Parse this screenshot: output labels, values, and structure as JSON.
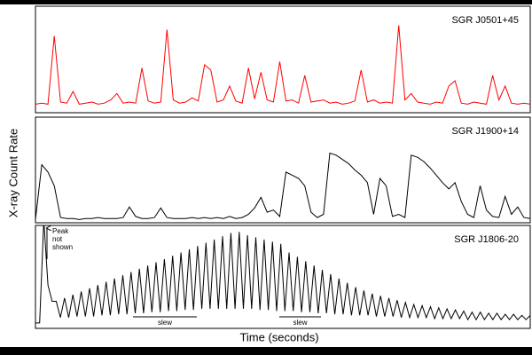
{
  "axis_labels": {
    "y": "X-ray Count Rate",
    "x": "Time (seconds)"
  },
  "chart_data": [
    {
      "type": "line",
      "label": "SGR J0501+45",
      "color": "#ff0000",
      "xlim": [
        0,
        79
      ],
      "ylim": [
        0,
        100
      ],
      "x": [
        0,
        1,
        2,
        3,
        4,
        5,
        6,
        7,
        8,
        9,
        10,
        11,
        12,
        13,
        14,
        15,
        16,
        17,
        18,
        19,
        20,
        21,
        22,
        23,
        24,
        25,
        26,
        27,
        28,
        29,
        30,
        31,
        32,
        33,
        34,
        35,
        36,
        37,
        38,
        39,
        40,
        41,
        42,
        43,
        44,
        45,
        46,
        47,
        48,
        49,
        50,
        51,
        52,
        53,
        54,
        55,
        56,
        57,
        58,
        59,
        60,
        61,
        62,
        63,
        64,
        65,
        66,
        67,
        68,
        69,
        70,
        71,
        72,
        73,
        74,
        75,
        76,
        77,
        78,
        79
      ],
      "values": [
        8,
        9,
        8,
        72,
        10,
        9,
        20,
        8,
        9,
        10,
        8,
        9,
        12,
        18,
        9,
        10,
        9,
        42,
        11,
        9,
        10,
        78,
        12,
        9,
        10,
        14,
        11,
        45,
        40,
        10,
        12,
        25,
        11,
        9,
        42,
        13,
        38,
        12,
        10,
        48,
        11,
        12,
        9,
        35,
        10,
        11,
        12,
        9,
        10,
        8,
        9,
        11,
        40,
        10,
        12,
        9,
        10,
        9,
        82,
        12,
        18,
        10,
        9,
        8,
        10,
        9,
        25,
        30,
        9,
        8,
        10,
        9,
        8,
        35,
        12,
        25,
        9,
        8,
        9,
        8
      ]
    },
    {
      "type": "line",
      "label": "SGR J1900+14",
      "color": "#000000",
      "xlim": [
        0,
        79
      ],
      "ylim": [
        0,
        100
      ],
      "x": [
        0,
        1,
        2,
        3,
        4,
        5,
        6,
        7,
        8,
        9,
        10,
        11,
        12,
        13,
        14,
        15,
        16,
        17,
        18,
        19,
        20,
        21,
        22,
        23,
        24,
        25,
        26,
        27,
        28,
        29,
        30,
        31,
        32,
        33,
        34,
        35,
        36,
        37,
        38,
        39,
        40,
        41,
        42,
        43,
        44,
        45,
        46,
        47,
        48,
        49,
        50,
        51,
        52,
        53,
        54,
        55,
        56,
        57,
        58,
        59,
        60,
        61,
        62,
        63,
        64,
        65,
        66,
        67,
        68,
        69,
        70,
        71,
        72,
        73,
        74,
        75,
        76,
        77,
        78,
        79
      ],
      "values": [
        3,
        55,
        48,
        35,
        5,
        4,
        4,
        3,
        4,
        4,
        5,
        4,
        4,
        4,
        5,
        15,
        6,
        4,
        4,
        5,
        14,
        5,
        4,
        4,
        4,
        5,
        4,
        5,
        4,
        5,
        4,
        6,
        4,
        5,
        8,
        14,
        24,
        10,
        12,
        6,
        48,
        45,
        42,
        35,
        10,
        5,
        8,
        66,
        64,
        60,
        56,
        50,
        45,
        38,
        8,
        42,
        35,
        6,
        8,
        5,
        64,
        62,
        58,
        52,
        45,
        38,
        32,
        38,
        20,
        8,
        5,
        35,
        12,
        6,
        5,
        25,
        8,
        15,
        5,
        4
      ]
    },
    {
      "type": "line",
      "label": "SGR J1806-20",
      "color": "#000000",
      "xlim": [
        0,
        119
      ],
      "ylim": [
        0,
        95
      ],
      "annotation": [
        "Peak",
        "not",
        "shown"
      ],
      "slew_labels": [
        "slew",
        "slew"
      ],
      "x": [
        0,
        1,
        2,
        3,
        4,
        5,
        6,
        7,
        8,
        9,
        10,
        11,
        12,
        13,
        14,
        15,
        16,
        17,
        18,
        19,
        20,
        21,
        22,
        23,
        24,
        25,
        26,
        27,
        28,
        29,
        30,
        31,
        32,
        33,
        34,
        35,
        36,
        37,
        38,
        39,
        40,
        41,
        42,
        43,
        44,
        45,
        46,
        47,
        48,
        49,
        50,
        51,
        52,
        53,
        54,
        55,
        56,
        57,
        58,
        59,
        60,
        61,
        62,
        63,
        64,
        65,
        66,
        67,
        68,
        69,
        70,
        71,
        72,
        73,
        74,
        75,
        76,
        77,
        78,
        79,
        80,
        81,
        82,
        83,
        84,
        85,
        86,
        87,
        88,
        89,
        90,
        91,
        92,
        93,
        94,
        95,
        96,
        97,
        98,
        99,
        100,
        101,
        102,
        103,
        104,
        105,
        106,
        107,
        108,
        109,
        110,
        111,
        112,
        113,
        114,
        115,
        116,
        117,
        118,
        119
      ],
      "values": [
        5,
        5,
        100,
        40,
        25,
        25,
        10,
        28,
        10,
        31,
        11,
        34,
        11,
        37,
        11,
        40,
        12,
        43,
        12,
        46,
        13,
        49,
        13,
        52,
        14,
        55,
        14,
        58,
        15,
        61,
        15,
        64,
        16,
        67,
        16,
        70,
        17,
        73,
        17,
        76,
        18,
        79,
        18,
        82,
        18,
        85,
        18,
        88,
        18,
        89,
        18,
        86,
        18,
        84,
        17,
        82,
        17,
        80,
        16,
        78,
        16,
        70,
        16,
        66,
        15,
        62,
        15,
        58,
        14,
        54,
        14,
        50,
        13,
        46,
        13,
        42,
        12,
        38,
        12,
        35,
        12,
        32,
        11,
        30,
        11,
        28,
        11,
        26,
        10,
        24,
        10,
        22,
        10,
        21,
        10,
        20,
        9,
        19,
        9,
        18,
        9,
        17,
        9,
        16,
        8,
        15,
        8,
        15,
        8,
        14,
        8,
        14,
        8,
        13,
        8,
        13,
        8,
        12,
        8,
        12
      ]
    }
  ]
}
